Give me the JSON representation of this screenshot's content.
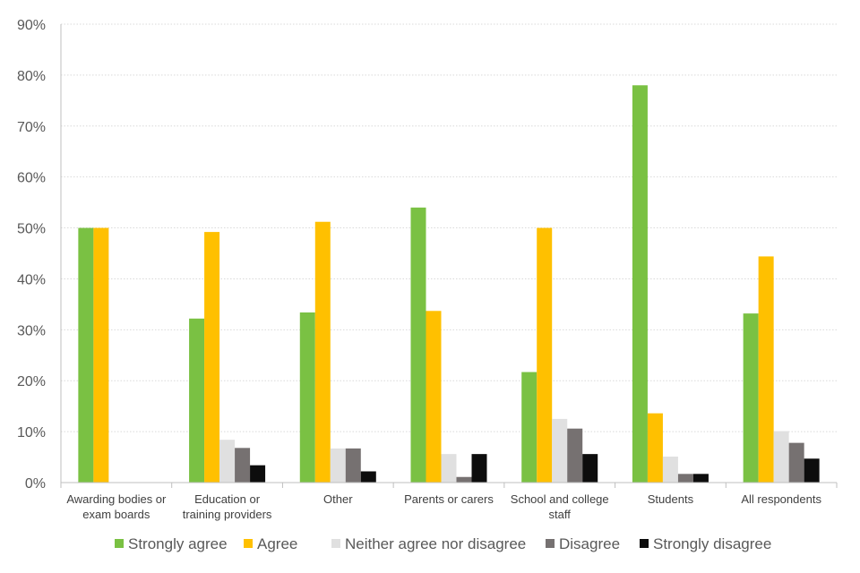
{
  "chart_data": {
    "type": "bar",
    "title": "",
    "xlabel": "",
    "ylabel": "",
    "ylim": [
      0,
      90
    ],
    "yticks": [
      "0%",
      "10%",
      "20%",
      "30%",
      "40%",
      "50%",
      "60%",
      "70%",
      "80%",
      "90%"
    ],
    "grid": true,
    "legend_position": "bottom",
    "categories": [
      [
        "Awarding bodies or",
        "exam boards"
      ],
      [
        "Education or",
        "training providers"
      ],
      [
        "Other"
      ],
      [
        "Parents or carers"
      ],
      [
        "School and college",
        "staff"
      ],
      [
        "Students"
      ],
      [
        "All respondents"
      ]
    ],
    "series": [
      {
        "name": "Strongly agree",
        "color": "#7ac143",
        "values": [
          50,
          32.2,
          33.4,
          54,
          21.7,
          78,
          33.2
        ]
      },
      {
        "name": "Agree",
        "color": "#ffc000",
        "values": [
          50,
          49.2,
          51.2,
          33.7,
          50,
          13.6,
          44.4
        ]
      },
      {
        "name": "Neither agree nor disagree",
        "color": "#e0e0e0",
        "values": [
          0,
          8.4,
          6.7,
          5.6,
          12.5,
          5.1,
          10.1
        ]
      },
      {
        "name": "Disagree",
        "color": "#767171",
        "values": [
          0,
          6.8,
          6.7,
          1.1,
          10.6,
          1.7,
          7.8
        ]
      },
      {
        "name": "Strongly disagree",
        "color": "#0d0d0d",
        "values": [
          0,
          3.4,
          2.2,
          5.6,
          5.6,
          1.7,
          4.7
        ]
      }
    ]
  }
}
